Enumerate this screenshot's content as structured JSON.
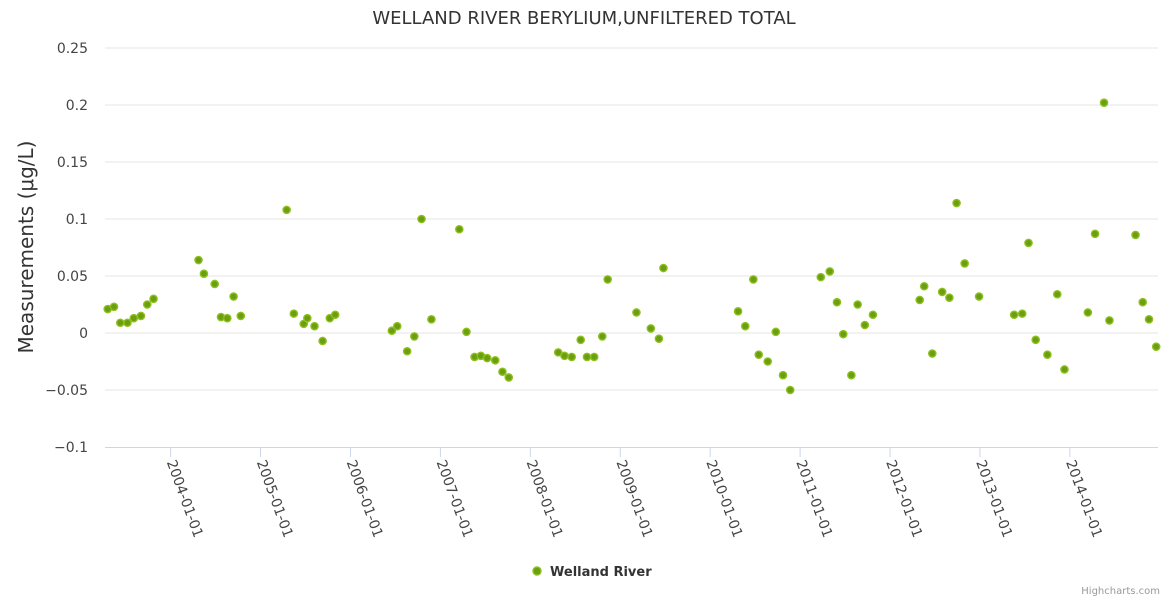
{
  "chart_data": {
    "type": "scatter",
    "title": "WELLAND RIVER BERYLIUM,UNFILTERED TOTAL",
    "xlabel": "",
    "ylabel": "Measurements (μg/L)",
    "ylim": [
      -0.1,
      0.25
    ],
    "yticks": [
      0.25,
      0.2,
      0.15,
      0.1,
      0.05,
      0,
      -0.05,
      -0.1
    ],
    "ytick_labels": [
      "0.25",
      "0.2",
      "0.15",
      "0.1",
      "0.05",
      "0",
      "−0.05",
      "−0.1"
    ],
    "xlim": [
      2003.27,
      2014.98
    ],
    "xticks": [
      2004,
      2005,
      2006,
      2007,
      2008,
      2009,
      2010,
      2011,
      2012,
      2013,
      2014
    ],
    "xtick_labels": [
      "2004-01-01",
      "2005-01-01",
      "2006-01-01",
      "2007-01-01",
      "2008-01-01",
      "2009-01-01",
      "2010-01-01",
      "2011-01-01",
      "2012-01-01",
      "2013-01-01",
      "2014-01-01"
    ],
    "grid": true,
    "legend_position": "bottom-center",
    "series": [
      {
        "name": "Welland River",
        "color": "#6aa010",
        "edge_color": "#8fbf1f",
        "x": [
          2003.3,
          2003.37,
          2003.44,
          2003.52,
          2003.59,
          2003.67,
          2003.74,
          2003.81,
          2004.31,
          2004.37,
          2004.49,
          2004.56,
          2004.63,
          2004.7,
          2004.78,
          2005.29,
          2005.37,
          2005.48,
          2005.52,
          2005.6,
          2005.69,
          2005.77,
          2005.83,
          2006.46,
          2006.52,
          2006.63,
          2006.71,
          2006.79,
          2006.9,
          2007.21,
          2007.29,
          2007.38,
          2007.45,
          2007.52,
          2007.61,
          2007.69,
          2007.76,
          2008.31,
          2008.38,
          2008.46,
          2008.56,
          2008.63,
          2008.71,
          2008.8,
          2008.86,
          2009.18,
          2009.34,
          2009.43,
          2009.48,
          2010.31,
          2010.39,
          2010.48,
          2010.54,
          2010.64,
          2010.73,
          2010.81,
          2010.89,
          2011.23,
          2011.33,
          2011.41,
          2011.48,
          2011.57,
          2011.64,
          2011.72,
          2011.81,
          2012.33,
          2012.38,
          2012.47,
          2012.58,
          2012.66,
          2012.74,
          2012.83,
          2012.99,
          2013.38,
          2013.47,
          2013.54,
          2013.62,
          2013.75,
          2013.86,
          2013.94,
          2014.2,
          2014.28,
          2014.38,
          2014.44,
          2014.73,
          2014.81,
          2014.88,
          2014.96
        ],
        "values": [
          0.021,
          0.023,
          0.009,
          0.009,
          0.013,
          0.015,
          0.025,
          0.03,
          0.064,
          0.052,
          0.043,
          0.014,
          0.013,
          0.032,
          0.015,
          0.108,
          0.017,
          0.008,
          0.013,
          0.006,
          -0.007,
          0.013,
          0.016,
          0.002,
          0.006,
          -0.016,
          -0.003,
          0.1,
          0.012,
          0.091,
          0.001,
          -0.021,
          -0.02,
          -0.022,
          -0.024,
          -0.034,
          -0.039,
          -0.017,
          -0.02,
          -0.021,
          -0.006,
          -0.021,
          -0.021,
          -0.003,
          0.047,
          0.018,
          0.004,
          -0.005,
          0.057,
          0.019,
          0.006,
          0.047,
          -0.019,
          -0.025,
          0.001,
          -0.037,
          -0.05,
          0.049,
          0.054,
          0.027,
          -0.001,
          -0.037,
          0.025,
          0.007,
          0.016,
          0.029,
          0.041,
          -0.018,
          0.036,
          0.031,
          0.114,
          0.061,
          0.032,
          0.016,
          0.017,
          0.079,
          -0.006,
          -0.019,
          0.034,
          -0.032,
          0.018,
          0.087,
          0.202,
          0.011,
          0.086,
          0.027,
          0.012,
          -0.012
        ]
      }
    ],
    "credit": "Highcharts.com"
  }
}
